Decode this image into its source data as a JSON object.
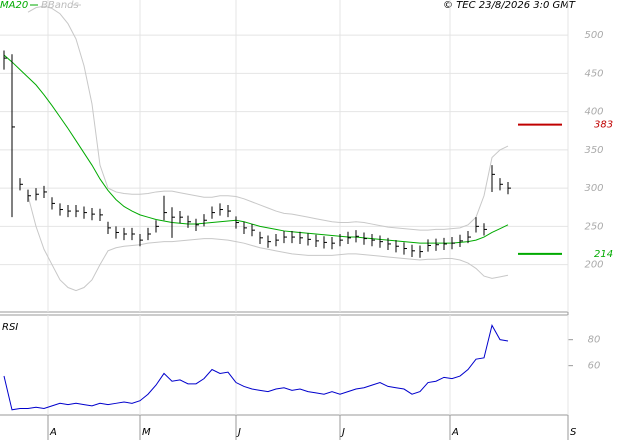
{
  "chart_data": [
    {
      "type": "ohlc",
      "subtitle": "© TEC 23/8/2026 3:0 GMT",
      "bar_color": "#000000",
      "high": [
        480,
        475,
        313,
        298,
        300,
        303,
        288,
        280,
        278,
        278,
        276,
        274,
        273,
        256,
        250,
        248,
        248,
        240,
        248,
        258,
        290,
        275,
        270,
        264,
        260,
        266,
        276,
        280,
        278,
        263,
        256,
        253,
        243,
        238,
        240,
        244,
        244,
        243,
        241,
        239,
        237,
        236,
        240,
        243,
        245,
        242,
        240,
        238,
        235,
        232,
        229,
        226,
        225,
        233,
        234,
        235,
        236,
        239,
        244,
        262,
        254,
        330,
        313,
        308
      ],
      "low": [
        455,
        262,
        297,
        282,
        284,
        287,
        272,
        264,
        262,
        262,
        260,
        258,
        257,
        240,
        234,
        232,
        232,
        224,
        232,
        242,
        258,
        235,
        254,
        248,
        244,
        250,
        260,
        264,
        262,
        247,
        240,
        237,
        227,
        222,
        224,
        228,
        228,
        227,
        225,
        223,
        221,
        220,
        224,
        227,
        229,
        226,
        224,
        222,
        219,
        216,
        213,
        210,
        209,
        217,
        218,
        219,
        220,
        223,
        228,
        242,
        238,
        295,
        297,
        292
      ],
      "close": [
        470,
        380,
        305,
        290,
        292,
        295,
        280,
        272,
        270,
        270,
        268,
        266,
        265,
        248,
        242,
        240,
        240,
        232,
        240,
        250,
        268,
        262,
        262,
        256,
        252,
        258,
        268,
        272,
        270,
        255,
        248,
        245,
        235,
        230,
        232,
        236,
        236,
        235,
        233,
        231,
        229,
        228,
        232,
        235,
        237,
        234,
        232,
        230,
        227,
        224,
        221,
        218,
        217,
        225,
        226,
        227,
        228,
        231,
        236,
        250,
        246,
        318,
        305,
        300
      ],
      "series": [
        {
          "name": "MA20",
          "color": "#00aa00",
          "values": [
            474,
            465,
            455,
            445,
            435,
            422,
            408,
            393,
            378,
            362,
            346,
            330,
            312,
            297,
            285,
            276,
            270,
            265,
            262,
            259,
            257,
            255,
            254,
            253,
            253,
            254,
            255,
            256,
            257,
            258,
            256,
            253,
            250,
            248,
            246,
            244,
            243,
            242,
            241,
            240,
            239,
            238,
            237,
            236,
            236,
            235,
            234,
            233,
            232,
            231,
            230,
            229,
            228,
            228,
            228,
            228,
            228,
            229,
            230,
            232,
            236,
            242,
            247,
            252
          ]
        },
        {
          "name": "BBands",
          "color": "#c8c8c8",
          "upper": [
            null,
            null,
            null,
            530,
            536,
            538,
            535,
            528,
            515,
            495,
            460,
            410,
            330,
            300,
            295,
            293,
            292,
            292,
            293,
            295,
            296,
            296,
            294,
            292,
            290,
            288,
            288,
            290,
            290,
            289,
            286,
            282,
            278,
            274,
            270,
            267,
            266,
            264,
            262,
            260,
            258,
            256,
            255,
            255,
            256,
            255,
            253,
            251,
            249,
            248,
            247,
            246,
            245,
            245,
            246,
            246,
            247,
            248,
            252,
            262,
            290,
            340,
            350,
            355
          ],
          "lower": [
            null,
            null,
            null,
            290,
            250,
            220,
            200,
            180,
            170,
            166,
            170,
            180,
            200,
            218,
            222,
            224,
            225,
            226,
            228,
            229,
            230,
            230,
            231,
            232,
            233,
            234,
            234,
            233,
            232,
            230,
            228,
            225,
            222,
            220,
            218,
            216,
            214,
            213,
            212,
            212,
            212,
            212,
            213,
            214,
            214,
            213,
            212,
            211,
            210,
            209,
            208,
            207,
            206,
            207,
            207,
            208,
            208,
            206,
            202,
            195,
            185,
            182,
            184,
            186
          ]
        }
      ],
      "levels": [
        {
          "value": 383,
          "color": "#c00000"
        },
        {
          "value": 214,
          "color": "#00aa00"
        }
      ],
      "xlim": [
        -0.5,
        70.5
      ],
      "ylim": [
        138,
        546
      ],
      "yticks": [
        200,
        250,
        300,
        350,
        400,
        450,
        500
      ],
      "grid": true
    },
    {
      "type": "line",
      "title": "RSI",
      "series": [
        {
          "color": "#0000cc",
          "values": [
            52,
            26,
            27,
            27,
            28,
            27,
            29,
            31,
            30,
            31,
            30,
            29,
            31,
            30,
            31,
            32,
            31,
            33,
            38,
            45,
            54,
            48,
            49,
            46,
            46,
            50,
            57,
            54,
            55,
            47,
            44,
            42,
            41,
            40,
            42,
            43,
            41,
            42,
            40,
            39,
            38,
            40,
            38,
            40,
            42,
            43,
            45,
            47,
            44,
            43,
            42,
            38,
            40,
            47,
            48,
            51,
            50,
            52,
            57,
            65,
            66,
            91,
            80,
            79
          ]
        }
      ],
      "xlim": [
        -0.5,
        70.5
      ],
      "ylim": [
        22,
        99
      ],
      "yticks": [
        60,
        80
      ],
      "xticks": [
        {
          "value": 5.5,
          "label": "A"
        },
        {
          "value": 17,
          "label": "M"
        },
        {
          "value": 29,
          "label": "J"
        },
        {
          "value": 42,
          "label": "J"
        },
        {
          "value": 55.75,
          "label": "A"
        },
        {
          "value": 70.5,
          "label": "S"
        }
      ],
      "grid": true
    }
  ]
}
